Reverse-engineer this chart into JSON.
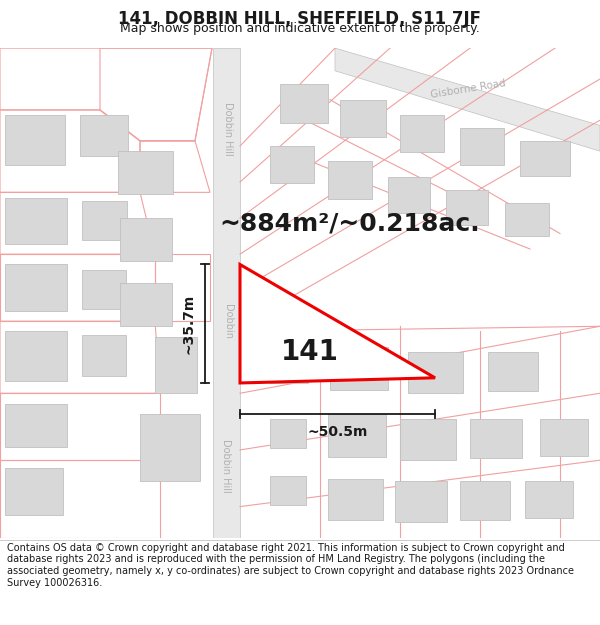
{
  "title": "141, DOBBIN HILL, SHEFFIELD, S11 7JF",
  "subtitle": "Map shows position and indicative extent of the property.",
  "area_text": "~884m²/~0.218ac.",
  "label_141": "141",
  "dim_height": "~35.7m",
  "dim_width": "~50.5m",
  "road_dobbin_hill_top": "Dobbin Hill",
  "road_dobbin_hill_mid": "Dobbin",
  "road_dobbin_hill_bot": "Dobbin Hill",
  "road_gisborne": "Gisborne Road",
  "footer_text": "Contains OS data © Crown copyright and database right 2021. This information is subject to Crown copyright and database rights 2023 and is reproduced with the permission of HM Land Registry. The polygons (including the associated geometry, namely x, y co-ordinates) are subject to Crown copyright and database rights 2023 Ordnance Survey 100026316.",
  "bg_color": "#ffffff",
  "road_strip_color": "#e8e8e8",
  "road_strip_edge": "#c0c0c0",
  "parcel_line_color": "#f0a0a0",
  "building_color": "#d8d8d8",
  "building_edge": "#c0c0c0",
  "highlight_color": "#ee0000",
  "highlight_fill": "#ffffff",
  "text_color": "#1a1a1a",
  "road_text_color": "#b0b0b0",
  "dim_color": "#1a1a1a",
  "footer_bg": "#ffffff",
  "title_fontsize": 12,
  "subtitle_fontsize": 9,
  "area_fontsize": 18,
  "label_fontsize": 20,
  "dim_fontsize": 10,
  "road_fontsize": 7,
  "footer_fontsize": 7
}
